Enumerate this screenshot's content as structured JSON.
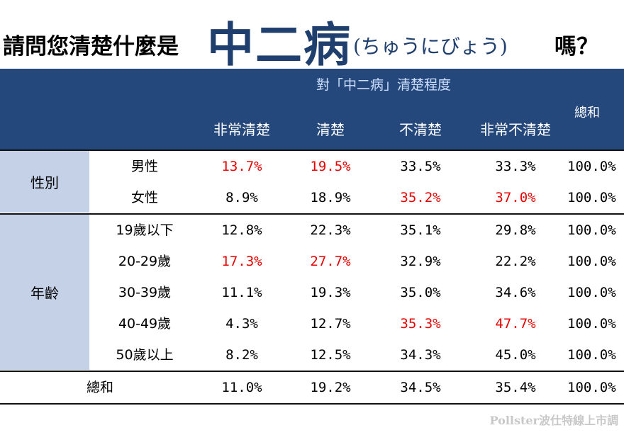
{
  "title": {
    "prefix": "請問您清楚什麼是",
    "highlight": "中二病",
    "kana": "(ちゅうにびょう)",
    "suffix": "嗎？"
  },
  "source": "Pollster波仕特線上市調",
  "chart_data": {
    "type": "table",
    "group_header": "對「中二病」清楚程度",
    "columns": [
      "非常清楚",
      "清楚",
      "不清楚",
      "非常不清楚"
    ],
    "total_column": "總和",
    "highlight_color": "#e60000",
    "groups": [
      {
        "name": "性別",
        "rows": [
          {
            "label": "男性",
            "values": [
              "13.7%",
              "19.5%",
              "33.5%",
              "33.3%"
            ],
            "total": "100.0%",
            "highlight": [
              0,
              1
            ]
          },
          {
            "label": "女性",
            "values": [
              "8.9%",
              "18.9%",
              "35.2%",
              "37.0%"
            ],
            "total": "100.0%",
            "highlight": [
              2,
              3
            ]
          }
        ]
      },
      {
        "name": "年齡",
        "rows": [
          {
            "label": "19歲以下",
            "values": [
              "12.8%",
              "22.3%",
              "35.1%",
              "29.8%"
            ],
            "total": "100.0%",
            "highlight": []
          },
          {
            "label": "20-29歲",
            "values": [
              "17.3%",
              "27.7%",
              "32.9%",
              "22.2%"
            ],
            "total": "100.0%",
            "highlight": [
              0,
              1
            ]
          },
          {
            "label": "30-39歲",
            "values": [
              "11.1%",
              "19.3%",
              "35.0%",
              "34.6%"
            ],
            "total": "100.0%",
            "highlight": []
          },
          {
            "label": "40-49歲",
            "values": [
              "4.3%",
              "12.7%",
              "35.3%",
              "47.7%"
            ],
            "total": "100.0%",
            "highlight": [
              2,
              3
            ]
          },
          {
            "label": "50歲以上",
            "values": [
              "8.2%",
              "12.5%",
              "34.3%",
              "45.0%"
            ],
            "total": "100.0%",
            "highlight": []
          }
        ]
      }
    ],
    "overall": {
      "label": "總和",
      "values": [
        "11.0%",
        "19.2%",
        "34.5%",
        "35.4%"
      ],
      "total": "100.0%"
    }
  }
}
